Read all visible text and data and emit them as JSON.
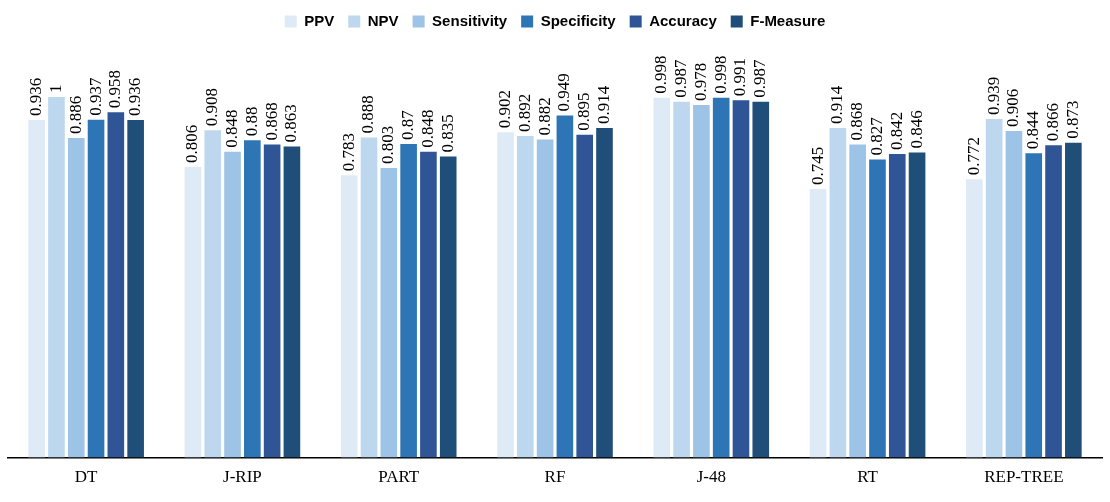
{
  "chart_data": {
    "type": "bar",
    "categories": [
      "DT",
      "J-RIP",
      "PART",
      "RF",
      "J-48",
      "RT",
      "REP-TREE"
    ],
    "series": [
      {
        "name": "PPV",
        "color": "#deebf7",
        "values": [
          0.936,
          0.806,
          0.783,
          0.902,
          0.998,
          0.745,
          0.772
        ]
      },
      {
        "name": "NPV",
        "color": "#bdd7ee",
        "values": [
          1,
          0.908,
          0.888,
          0.892,
          0.987,
          0.914,
          0.939
        ]
      },
      {
        "name": "Sensitivity",
        "color": "#9dc3e6",
        "values": [
          0.886,
          0.848,
          0.803,
          0.882,
          0.978,
          0.868,
          0.906
        ]
      },
      {
        "name": "Specificity",
        "color": "#2e75b6",
        "values": [
          0.937,
          0.88,
          0.87,
          0.949,
          0.998,
          0.827,
          0.844
        ]
      },
      {
        "name": "Accuracy",
        "color": "#2f5597",
        "values": [
          0.958,
          0.868,
          0.848,
          0.895,
          0.991,
          0.842,
          0.866
        ]
      },
      {
        "name": "F-Measure",
        "color": "#1f4e79",
        "values": [
          0.936,
          0.863,
          0.835,
          0.914,
          0.987,
          0.846,
          0.873
        ]
      }
    ],
    "tick_labels": "x",
    "data_labels": true,
    "legend": "top",
    "grid": false
  }
}
